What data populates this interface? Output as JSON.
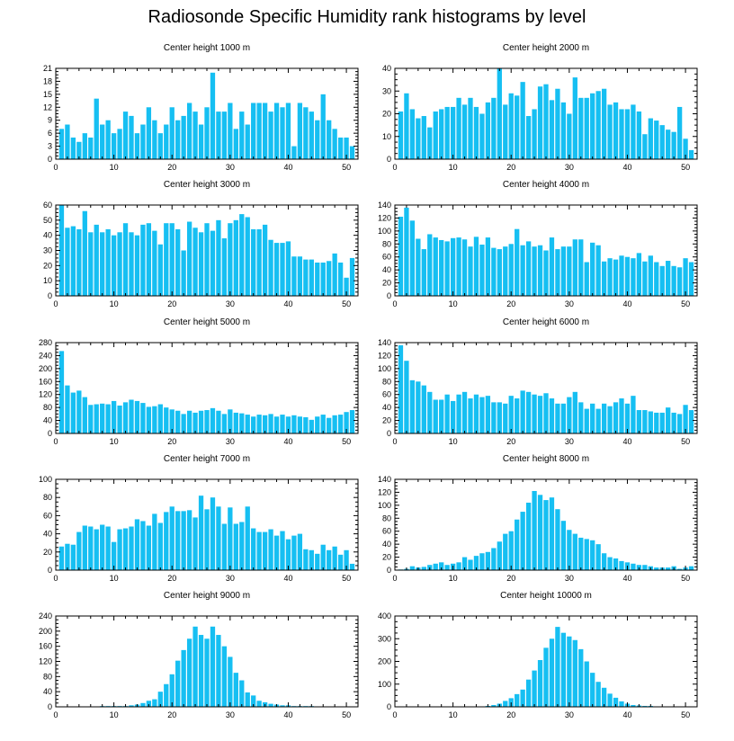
{
  "title": "Radiosonde Specific Humidity rank histograms by level",
  "bar_color": "#16bff2",
  "chart_data": [
    {
      "type": "bar",
      "title": "Center height 1000 m",
      "xlim": [
        0,
        52
      ],
      "ylim": [
        0,
        21
      ],
      "yticks": [
        0,
        3,
        6,
        9,
        12,
        15,
        18,
        21
      ],
      "xticks": [
        0,
        10,
        20,
        30,
        40,
        50
      ],
      "values": [
        7,
        8,
        5,
        4,
        6,
        5,
        14,
        8,
        9,
        6,
        7,
        11,
        10,
        6,
        8,
        12,
        9,
        6,
        8,
        12,
        9,
        10,
        13,
        11,
        8,
        12,
        20,
        11,
        11,
        13,
        7,
        11,
        8,
        13,
        13,
        13,
        11,
        13,
        12,
        13,
        3,
        13,
        12,
        11,
        9,
        15,
        9,
        7,
        5,
        5,
        3
      ]
    },
    {
      "type": "bar",
      "title": "Center height 2000 m",
      "xlim": [
        0,
        52
      ],
      "ylim": [
        0,
        40
      ],
      "yticks": [
        0,
        10,
        20,
        30,
        40
      ],
      "xticks": [
        0,
        10,
        20,
        30,
        40,
        50
      ],
      "values": [
        21,
        29,
        22,
        18,
        19,
        14,
        21,
        22,
        23,
        23,
        27,
        24,
        27,
        23,
        20,
        25,
        27,
        40,
        24,
        29,
        28,
        34,
        19,
        22,
        32,
        33,
        26,
        31,
        25,
        20,
        36,
        27,
        27,
        29,
        30,
        31,
        24,
        25,
        22,
        22,
        24,
        21,
        11,
        18,
        17,
        15,
        13,
        12,
        23,
        9,
        4
      ]
    },
    {
      "type": "bar",
      "title": "Center height 3000 m",
      "xlim": [
        0,
        52
      ],
      "ylim": [
        0,
        60
      ],
      "yticks": [
        0,
        10,
        20,
        30,
        40,
        50,
        60
      ],
      "xticks": [
        0,
        10,
        20,
        30,
        40,
        50
      ],
      "values": [
        60,
        45,
        46,
        44,
        56,
        42,
        47,
        42,
        44,
        40,
        42,
        48,
        42,
        40,
        47,
        48,
        43,
        34,
        48,
        48,
        44,
        30,
        49,
        45,
        42,
        48,
        43,
        50,
        38,
        48,
        50,
        54,
        52,
        44,
        44,
        47,
        37,
        35,
        35,
        36,
        26,
        26,
        24,
        24,
        22,
        22,
        23,
        28,
        22,
        12,
        25
      ]
    },
    {
      "type": "bar",
      "title": "Center height 4000 m",
      "xlim": [
        0,
        52
      ],
      "ylim": [
        0,
        140
      ],
      "yticks": [
        0,
        20,
        40,
        60,
        80,
        100,
        120,
        140
      ],
      "xticks": [
        0,
        10,
        20,
        30,
        40,
        50
      ],
      "values": [
        122,
        136,
        116,
        88,
        72,
        95,
        90,
        86,
        84,
        89,
        90,
        87,
        76,
        91,
        79,
        90,
        74,
        72,
        76,
        80,
        103,
        78,
        84,
        76,
        78,
        70,
        90,
        72,
        76,
        76,
        87,
        87,
        52,
        82,
        78,
        53,
        58,
        56,
        62,
        60,
        58,
        66,
        53,
        62,
        52,
        46,
        54,
        46,
        44,
        58,
        52
      ]
    },
    {
      "type": "bar",
      "title": "Center height 5000 m",
      "xlim": [
        0,
        52
      ],
      "ylim": [
        0,
        280
      ],
      "yticks": [
        0,
        40,
        80,
        120,
        160,
        200,
        240,
        280
      ],
      "xticks": [
        0,
        10,
        20,
        30,
        40,
        50
      ],
      "values": [
        254,
        148,
        126,
        132,
        112,
        88,
        90,
        92,
        90,
        100,
        86,
        96,
        104,
        100,
        94,
        82,
        84,
        90,
        80,
        74,
        70,
        60,
        70,
        64,
        70,
        72,
        78,
        70,
        60,
        74,
        64,
        62,
        58,
        52,
        58,
        56,
        60,
        52,
        58,
        52,
        56,
        52,
        50,
        42,
        52,
        58,
        48,
        56,
        58,
        66,
        72
      ]
    },
    {
      "type": "bar",
      "title": "Center height 6000 m",
      "xlim": [
        0,
        52
      ],
      "ylim": [
        0,
        140
      ],
      "yticks": [
        0,
        20,
        40,
        60,
        80,
        100,
        120,
        140
      ],
      "xticks": [
        0,
        10,
        20,
        30,
        40,
        50
      ],
      "values": [
        136,
        112,
        82,
        80,
        74,
        64,
        52,
        52,
        60,
        50,
        60,
        64,
        54,
        60,
        56,
        58,
        48,
        48,
        46,
        58,
        54,
        66,
        64,
        60,
        58,
        62,
        54,
        46,
        46,
        56,
        64,
        48,
        38,
        46,
        38,
        46,
        42,
        48,
        54,
        46,
        58,
        36,
        36,
        34,
        32,
        32,
        40,
        32,
        30,
        44,
        36
      ]
    },
    {
      "type": "bar",
      "title": "Center height 7000 m",
      "xlim": [
        0,
        52
      ],
      "ylim": [
        0,
        100
      ],
      "yticks": [
        0,
        20,
        40,
        60,
        80,
        100
      ],
      "xticks": [
        0,
        10,
        20,
        30,
        40,
        50
      ],
      "values": [
        26,
        29,
        28,
        42,
        49,
        48,
        45,
        50,
        48,
        31,
        45,
        46,
        48,
        56,
        54,
        49,
        62,
        52,
        64,
        70,
        65,
        65,
        66,
        58,
        82,
        67,
        80,
        70,
        51,
        69,
        51,
        53,
        70,
        46,
        42,
        42,
        45,
        38,
        43,
        34,
        38,
        40,
        23,
        22,
        18,
        28,
        22,
        26,
        17,
        22,
        7
      ]
    },
    {
      "type": "bar",
      "title": "Center height 8000 m",
      "xlim": [
        0,
        52
      ],
      "ylim": [
        0,
        140
      ],
      "yticks": [
        0,
        20,
        40,
        60,
        80,
        100,
        120,
        140
      ],
      "xticks": [
        0,
        10,
        20,
        30,
        40,
        50
      ],
      "values": [
        1,
        2,
        6,
        4,
        5,
        8,
        10,
        12,
        8,
        10,
        12,
        20,
        16,
        22,
        26,
        28,
        34,
        44,
        56,
        60,
        78,
        90,
        104,
        122,
        116,
        108,
        112,
        94,
        76,
        62,
        56,
        50,
        48,
        46,
        40,
        26,
        20,
        18,
        14,
        12,
        10,
        8,
        8,
        6,
        4,
        4,
        4,
        6,
        2,
        4,
        6
      ]
    },
    {
      "type": "bar",
      "title": "Center height 9000 m",
      "xlim": [
        0,
        52
      ],
      "ylim": [
        0,
        240
      ],
      "yticks": [
        0,
        40,
        80,
        120,
        160,
        200,
        240
      ],
      "xticks": [
        0,
        10,
        20,
        30,
        40,
        50
      ],
      "values": [
        1,
        1,
        1,
        1,
        1,
        1,
        1,
        2,
        2,
        2,
        2,
        2,
        4,
        6,
        10,
        16,
        20,
        40,
        60,
        86,
        122,
        150,
        180,
        212,
        190,
        180,
        212,
        190,
        160,
        132,
        90,
        70,
        38,
        30,
        16,
        12,
        8,
        6,
        4,
        4,
        2,
        2,
        2,
        2,
        1,
        1,
        1,
        1,
        1,
        1,
        1
      ]
    },
    {
      "type": "bar",
      "title": "Center height 10000 m",
      "xlim": [
        0,
        52
      ],
      "ylim": [
        0,
        400
      ],
      "yticks": [
        0,
        100,
        200,
        300,
        400
      ],
      "xticks": [
        0,
        10,
        20,
        30,
        40,
        50
      ],
      "values": [
        1,
        1,
        1,
        1,
        1,
        1,
        1,
        1,
        1,
        1,
        1,
        1,
        1,
        1,
        2,
        4,
        8,
        14,
        26,
        38,
        56,
        76,
        120,
        160,
        206,
        260,
        300,
        352,
        326,
        310,
        294,
        254,
        200,
        150,
        110,
        84,
        58,
        40,
        24,
        14,
        8,
        6,
        4,
        4,
        2,
        2,
        2,
        2,
        1,
        1,
        1
      ]
    }
  ]
}
